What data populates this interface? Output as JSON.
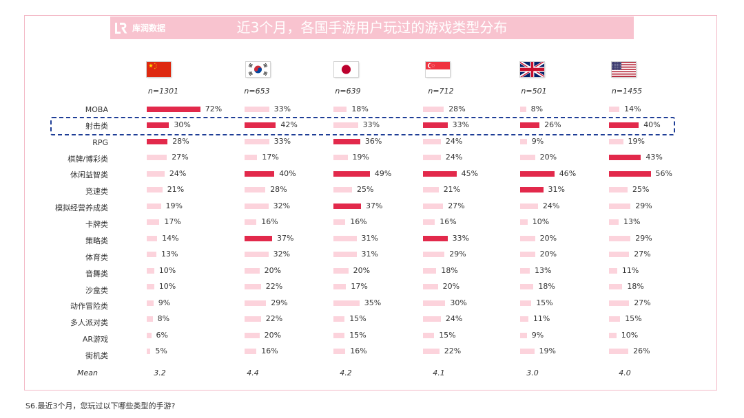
{
  "logo": {
    "icon": "kurun-logo-icon",
    "text": "库润数据"
  },
  "chart_data": {
    "type": "bar",
    "title": "近3个月，各国手游用户玩过的游戏类型分布",
    "categories": [
      "MOBA",
      "射击类",
      "RPG",
      "棋牌/博彩类",
      "休闲益智类",
      "竞速类",
      "模拟经营养成类",
      "卡牌类",
      "策略类",
      "体育类",
      "音舞类",
      "沙盒类",
      "动作冒险类",
      "多人派对类",
      "AR游戏",
      "街机类"
    ],
    "value_suffix": "%",
    "mean_label": "Mean",
    "framed_category_index": 1,
    "series": [
      {
        "flag": "flag-china-icon",
        "n_label": "n=1301",
        "values": [
          72,
          30,
          28,
          27,
          24,
          21,
          19,
          17,
          14,
          13,
          10,
          10,
          9,
          8,
          6,
          5
        ],
        "highlighted": [
          0,
          1,
          2
        ],
        "mean": "3.2"
      },
      {
        "flag": "flag-korea-icon",
        "n_label": "n=653",
        "values": [
          33,
          42,
          33,
          17,
          40,
          28,
          32,
          16,
          37,
          32,
          20,
          22,
          29,
          22,
          20,
          16
        ],
        "highlighted": [
          1,
          4,
          8
        ],
        "mean": "4.4"
      },
      {
        "flag": "flag-japan-icon",
        "n_label": "n=639",
        "values": [
          18,
          33,
          36,
          19,
          49,
          25,
          37,
          16,
          31,
          31,
          20,
          17,
          35,
          15,
          15,
          16
        ],
        "highlighted": [
          2,
          4,
          6
        ],
        "mean": "4.2"
      },
      {
        "flag": "flag-singapore-icon",
        "n_label": "n=712",
        "values": [
          28,
          33,
          24,
          24,
          45,
          21,
          27,
          16,
          33,
          29,
          18,
          20,
          30,
          24,
          15,
          22
        ],
        "highlighted": [
          1,
          4,
          8
        ],
        "mean": "4.1"
      },
      {
        "flag": "flag-uk-icon",
        "n_label": "n=501",
        "values": [
          8,
          26,
          9,
          20,
          46,
          31,
          24,
          10,
          20,
          20,
          13,
          18,
          15,
          11,
          9,
          19
        ],
        "highlighted": [
          1,
          4,
          5
        ],
        "mean": "3.0"
      },
      {
        "flag": "flag-usa-icon",
        "n_label": "n=1455",
        "values": [
          14,
          40,
          19,
          43,
          56,
          25,
          29,
          13,
          29,
          27,
          11,
          18,
          27,
          15,
          10,
          26
        ],
        "highlighted": [
          1,
          3,
          4
        ],
        "mean": "4.0"
      }
    ],
    "colors": {
      "highlight": "#e2294b",
      "normal": "#fcd3dc",
      "banner": "#f8c3cf",
      "frame": "#1e3d96",
      "border": "#f3b9c6"
    }
  },
  "footnote": "S6.最近3个月，您玩过以下哪些类型的手游?"
}
